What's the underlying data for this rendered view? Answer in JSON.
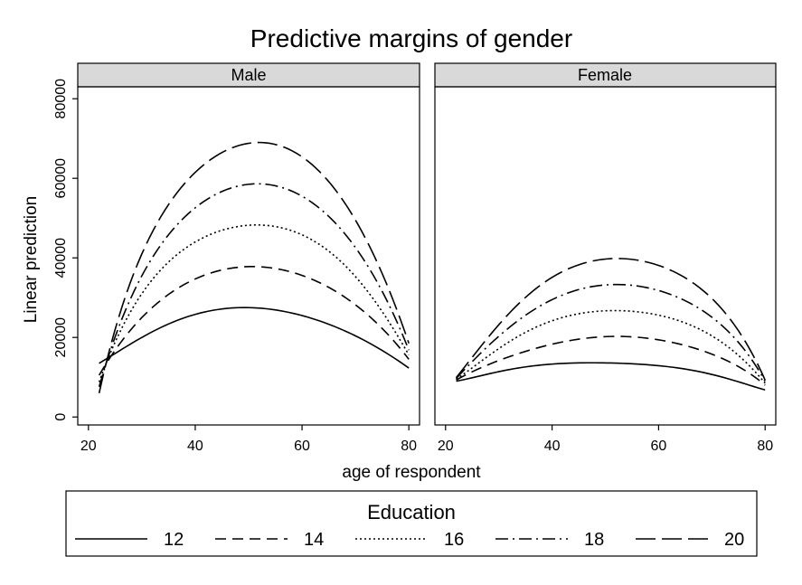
{
  "chart_data": {
    "type": "line",
    "title": "Predictive margins of gender",
    "xlabel": "age of respondent",
    "ylabel": "Linear prediction",
    "xlim": [
      18,
      82
    ],
    "ylim": [
      -2000,
      83000
    ],
    "xticks": [
      20,
      40,
      60,
      80
    ],
    "yticks": [
      0,
      20000,
      40000,
      60000,
      80000
    ],
    "grid": false,
    "legend": {
      "title": "Education",
      "placement": "bottom",
      "entries": [
        "12",
        "14",
        "16",
        "18",
        "20"
      ]
    },
    "panels": [
      {
        "name": "Male",
        "x": [
          22,
          30,
          40,
          50,
          60,
          70,
          80
        ],
        "series": [
          {
            "name": "12",
            "values": [
              13500,
              20000,
              25800,
              27500,
              25500,
              20400,
              12300
            ]
          },
          {
            "name": "14",
            "values": [
              10500,
              25000,
              34700,
              37800,
              35600,
              28200,
              14500
            ]
          },
          {
            "name": "16",
            "values": [
              8800,
              31000,
              44000,
              48200,
              45800,
              35300,
              15600
            ]
          },
          {
            "name": "18",
            "values": [
              7600,
              35500,
              52600,
              58500,
              55500,
              42600,
              16800
            ]
          },
          {
            "name": "20",
            "values": [
              6000,
              41000,
              61500,
              68800,
              65400,
              49500,
              18500
            ]
          }
        ]
      },
      {
        "name": "Female",
        "x": [
          22,
          30,
          40,
          50,
          60,
          70,
          80
        ],
        "series": [
          {
            "name": "12",
            "values": [
              9000,
              11400,
              13300,
              13600,
              12900,
              10700,
              6800
            ]
          },
          {
            "name": "14",
            "values": [
              9300,
              14200,
              18300,
              20200,
              19400,
              15800,
              8000
            ]
          },
          {
            "name": "16",
            "values": [
              9500,
              17200,
              24200,
              26700,
              25600,
              20400,
              8500
            ]
          },
          {
            "name": "18",
            "values": [
              9700,
              20300,
              29500,
              33200,
              31800,
              25100,
              9000
            ]
          },
          {
            "name": "20",
            "values": [
              9900,
              23200,
              35100,
              39700,
              38100,
              29800,
              9300
            ]
          }
        ]
      }
    ],
    "series_styles": [
      {
        "name": "12",
        "dash": "none"
      },
      {
        "name": "14",
        "dash": "long-dash"
      },
      {
        "name": "16",
        "dash": "dotted"
      },
      {
        "name": "18",
        "dash": "dash-dot"
      },
      {
        "name": "20",
        "dash": "extra-long-dash"
      }
    ],
    "colors": {
      "line": "#000000",
      "strip_fill": "#d9d9d9",
      "background": "#ffffff"
    }
  }
}
